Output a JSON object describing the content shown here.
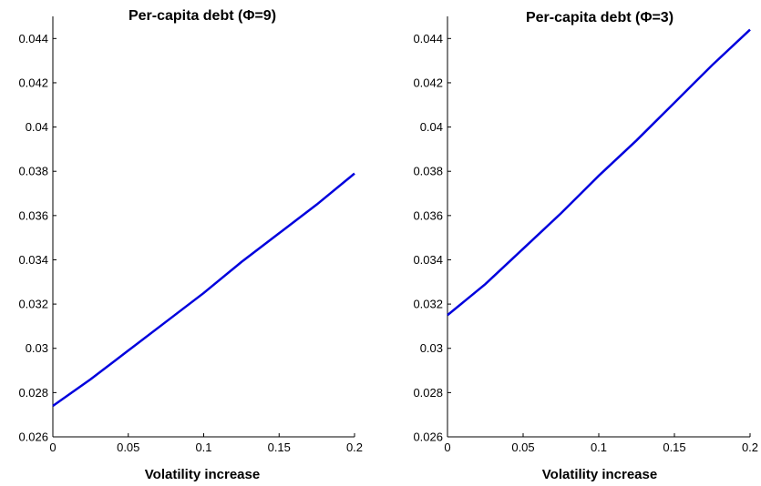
{
  "chart_data": [
    {
      "type": "line",
      "title": "Per-capita debt (Φ=9)",
      "xlabel": "Volatility increase",
      "ylabel": "",
      "xlim": [
        0,
        0.2
      ],
      "ylim": [
        0.026,
        0.045
      ],
      "x_ticks": [
        "0",
        "0.05",
        "0.1",
        "0.15",
        "0.2"
      ],
      "y_ticks": [
        "0.026",
        "0.028",
        "0.03",
        "0.032",
        "0.034",
        "0.036",
        "0.038",
        "0.04",
        "0.042",
        "0.044"
      ],
      "grid": false,
      "series": [
        {
          "color": "#0000dd",
          "x": [
            0,
            0.025,
            0.05,
            0.075,
            0.1,
            0.125,
            0.15,
            0.175,
            0.2
          ],
          "y": [
            0.0274,
            0.0286,
            0.0299,
            0.0312,
            0.0325,
            0.0339,
            0.0352,
            0.0365,
            0.0379
          ]
        }
      ]
    },
    {
      "type": "line",
      "title": "Per-capita debt (Φ=3)",
      "xlabel": "Volatility increase",
      "ylabel": "",
      "xlim": [
        0,
        0.2
      ],
      "ylim": [
        0.026,
        0.045
      ],
      "x_ticks": [
        "0",
        "0.05",
        "0.1",
        "0.15",
        "0.2"
      ],
      "y_ticks": [
        "0.026",
        "0.028",
        "0.03",
        "0.032",
        "0.034",
        "0.036",
        "0.038",
        "0.04",
        "0.042",
        "0.044"
      ],
      "grid": false,
      "series": [
        {
          "color": "#0000dd",
          "x": [
            0,
            0.025,
            0.05,
            0.075,
            0.1,
            0.125,
            0.15,
            0.175,
            0.2
          ],
          "y": [
            0.0315,
            0.0329,
            0.0345,
            0.0361,
            0.0378,
            0.0394,
            0.0411,
            0.0428,
            0.0444
          ]
        }
      ]
    }
  ]
}
